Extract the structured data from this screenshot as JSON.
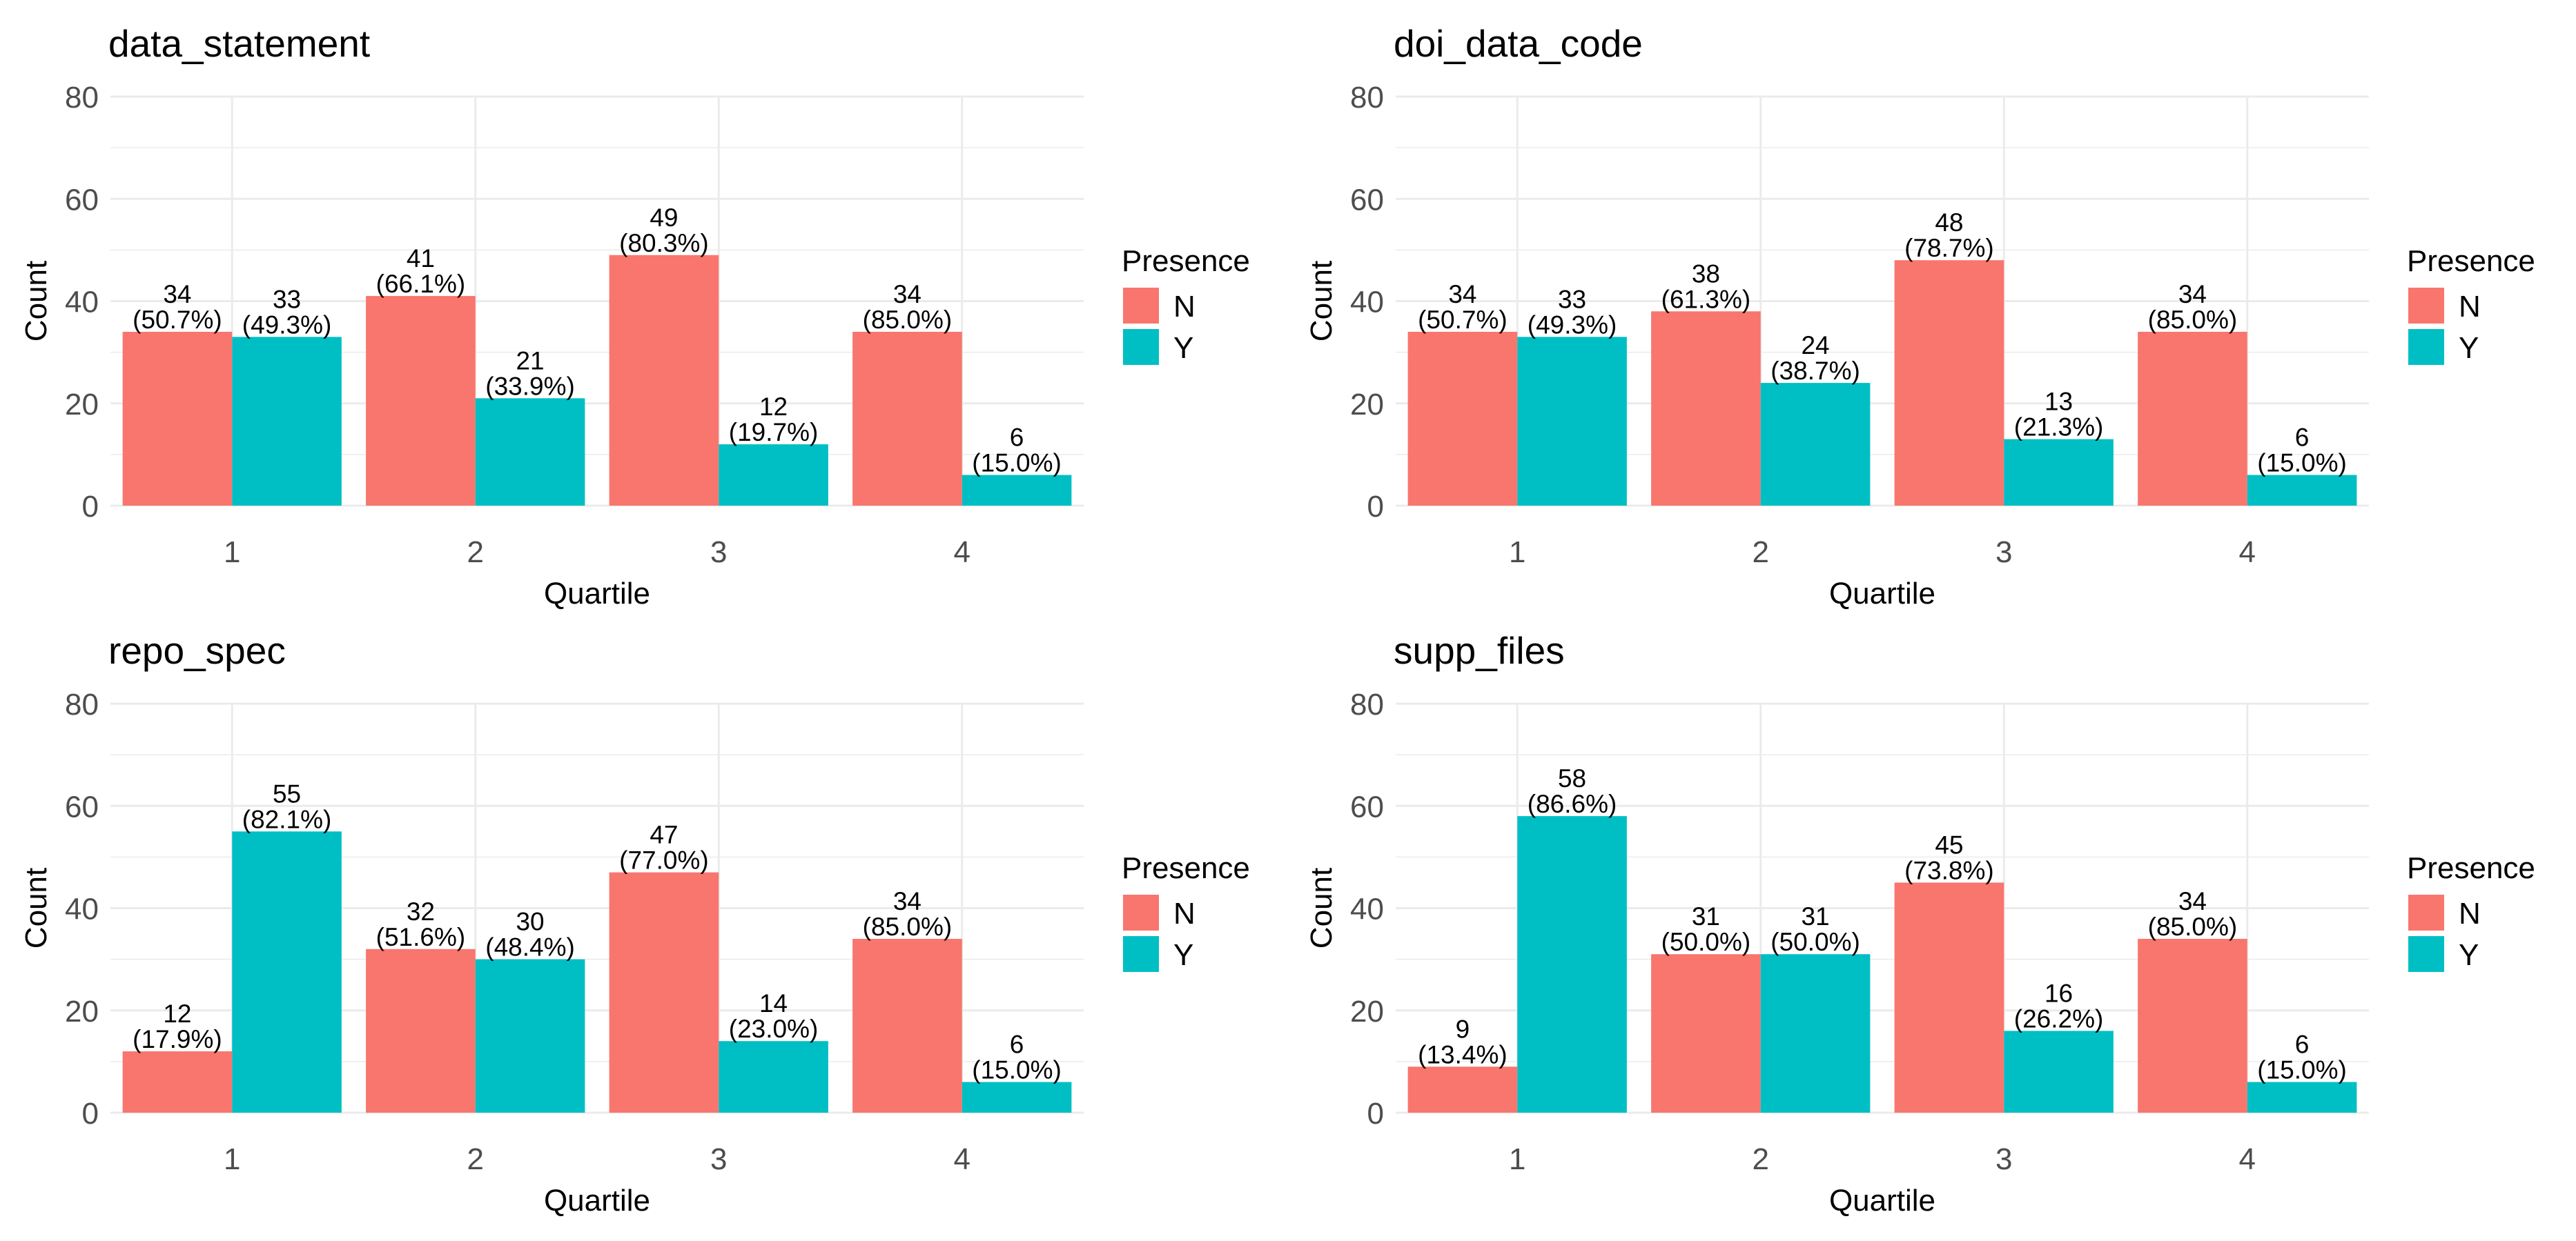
{
  "colors": {
    "N": "#F8766D",
    "Y": "#00BFC4",
    "grid": "#EBEBEB",
    "axis_text": "#4D4D4D",
    "text": "#000000"
  },
  "chart_data": [
    {
      "type": "bar",
      "title": "data_statement",
      "xlabel": "Quartile",
      "ylabel": "Count",
      "ylim": [
        0,
        80
      ],
      "yticks": [
        0,
        20,
        40,
        60,
        80
      ],
      "categories": [
        "1",
        "2",
        "3",
        "4"
      ],
      "legend": {
        "title": "Presence",
        "entries": [
          "N",
          "Y"
        ],
        "position": "right"
      },
      "series": [
        {
          "name": "N",
          "values": [
            34,
            41,
            49,
            34
          ],
          "labels": [
            "34\n(50.7%)",
            "41\n(66.1%)",
            "49\n(80.3%)",
            "34\n(85.0%)"
          ]
        },
        {
          "name": "Y",
          "values": [
            33,
            21,
            12,
            6
          ],
          "labels": [
            "33\n(49.3%)",
            "21\n(33.9%)",
            "12\n(19.7%)",
            "6\n(15.0%)"
          ]
        }
      ]
    },
    {
      "type": "bar",
      "title": "doi_data_code",
      "xlabel": "Quartile",
      "ylabel": "Count",
      "ylim": [
        0,
        80
      ],
      "yticks": [
        0,
        20,
        40,
        60,
        80
      ],
      "categories": [
        "1",
        "2",
        "3",
        "4"
      ],
      "legend": {
        "title": "Presence",
        "entries": [
          "N",
          "Y"
        ],
        "position": "right"
      },
      "series": [
        {
          "name": "N",
          "values": [
            34,
            38,
            48,
            34
          ],
          "labels": [
            "34\n(50.7%)",
            "38\n(61.3%)",
            "48\n(78.7%)",
            "34\n(85.0%)"
          ]
        },
        {
          "name": "Y",
          "values": [
            33,
            24,
            13,
            6
          ],
          "labels": [
            "33\n(49.3%)",
            "24\n(38.7%)",
            "13\n(21.3%)",
            "6\n(15.0%)"
          ]
        }
      ]
    },
    {
      "type": "bar",
      "title": "repo_spec",
      "xlabel": "Quartile",
      "ylabel": "Count",
      "ylim": [
        0,
        80
      ],
      "yticks": [
        0,
        20,
        40,
        60,
        80
      ],
      "categories": [
        "1",
        "2",
        "3",
        "4"
      ],
      "legend": {
        "title": "Presence",
        "entries": [
          "N",
          "Y"
        ],
        "position": "right"
      },
      "series": [
        {
          "name": "N",
          "values": [
            12,
            32,
            47,
            34
          ],
          "labels": [
            "12\n(17.9%)",
            "32\n(51.6%)",
            "47\n(77.0%)",
            "34\n(85.0%)"
          ]
        },
        {
          "name": "Y",
          "values": [
            55,
            30,
            14,
            6
          ],
          "labels": [
            "55\n(82.1%)",
            "30\n(48.4%)",
            "14\n(23.0%)",
            "6\n(15.0%)"
          ]
        }
      ]
    },
    {
      "type": "bar",
      "title": "supp_files",
      "xlabel": "Quartile",
      "ylabel": "Count",
      "ylim": [
        0,
        80
      ],
      "yticks": [
        0,
        20,
        40,
        60,
        80
      ],
      "categories": [
        "1",
        "2",
        "3",
        "4"
      ],
      "legend": {
        "title": "Presence",
        "entries": [
          "N",
          "Y"
        ],
        "position": "right"
      },
      "series": [
        {
          "name": "N",
          "values": [
            9,
            31,
            45,
            34
          ],
          "labels": [
            "9\n(13.4%)",
            "31\n(50.0%)",
            "45\n(73.8%)",
            "34\n(85.0%)"
          ]
        },
        {
          "name": "Y",
          "values": [
            58,
            31,
            16,
            6
          ],
          "labels": [
            "58\n(86.6%)",
            "31\n(50.0%)",
            "16\n(26.2%)",
            "6\n(15.0%)"
          ]
        }
      ]
    }
  ]
}
